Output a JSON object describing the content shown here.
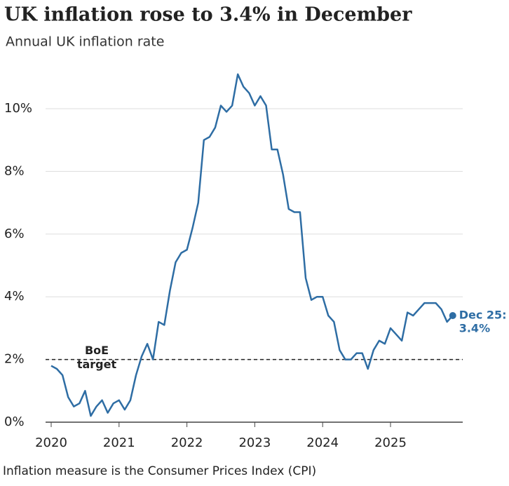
{
  "chart_data": {
    "type": "line",
    "title": "UK inflation rose to 3.4% in December",
    "subtitle": "Annual UK inflation rate",
    "footnote": "Inflation measure is the Consumer Prices Index (CPI)",
    "categories": [
      "2020",
      null,
      null,
      null,
      null,
      null,
      null,
      null,
      null,
      null,
      null,
      null,
      "2021",
      null,
      null,
      null,
      null,
      null,
      null,
      null,
      null,
      null,
      null,
      null,
      "2022",
      null,
      null,
      null,
      null,
      null,
      null,
      null,
      null,
      null,
      null,
      null,
      "2023",
      null,
      null,
      null,
      null,
      null,
      null,
      null,
      null,
      null,
      null,
      null,
      "2024",
      null,
      null,
      null,
      null,
      null,
      null,
      null,
      null,
      null,
      null,
      null,
      "2025",
      null,
      null,
      null,
      null,
      null,
      null,
      null,
      null,
      null,
      null,
      null
    ],
    "series": [
      {
        "name": "Annual UK inflation rate",
        "color": "#2e6da4",
        "values": [
          1.8,
          1.7,
          1.5,
          0.8,
          0.5,
          0.6,
          1.0,
          0.2,
          0.5,
          0.7,
          0.3,
          0.6,
          0.7,
          0.4,
          0.7,
          1.5,
          2.1,
          2.5,
          2.0,
          3.2,
          3.1,
          4.2,
          5.1,
          5.4,
          5.5,
          6.2,
          7.0,
          9.0,
          9.1,
          9.4,
          10.1,
          9.9,
          10.1,
          11.1,
          10.7,
          10.5,
          10.1,
          10.4,
          10.1,
          8.7,
          8.7,
          7.9,
          6.8,
          6.7,
          6.7,
          4.6,
          3.9,
          4.0,
          4.0,
          3.4,
          3.2,
          2.3,
          2.0,
          2.0,
          2.2,
          2.2,
          1.7,
          2.3,
          2.6,
          2.5,
          3.0,
          2.8,
          2.6,
          3.5,
          3.4,
          3.6,
          3.8,
          3.8,
          3.8,
          3.6,
          3.2,
          3.4
        ]
      }
    ],
    "end_label": [
      "Dec 25:",
      "3.4%"
    ],
    "reference_line": {
      "value": 2,
      "label": [
        "BoE",
        "target"
      ]
    },
    "ylim": [
      0,
      11.5
    ],
    "yticks": [
      {
        "value": 0,
        "label": "0%"
      },
      {
        "value": 2,
        "label": "2%"
      },
      {
        "value": 4,
        "label": "4%"
      },
      {
        "value": 6,
        "label": "6%"
      },
      {
        "value": 8,
        "label": "8%"
      },
      {
        "value": 10,
        "label": "10%"
      }
    ],
    "grid": true
  }
}
